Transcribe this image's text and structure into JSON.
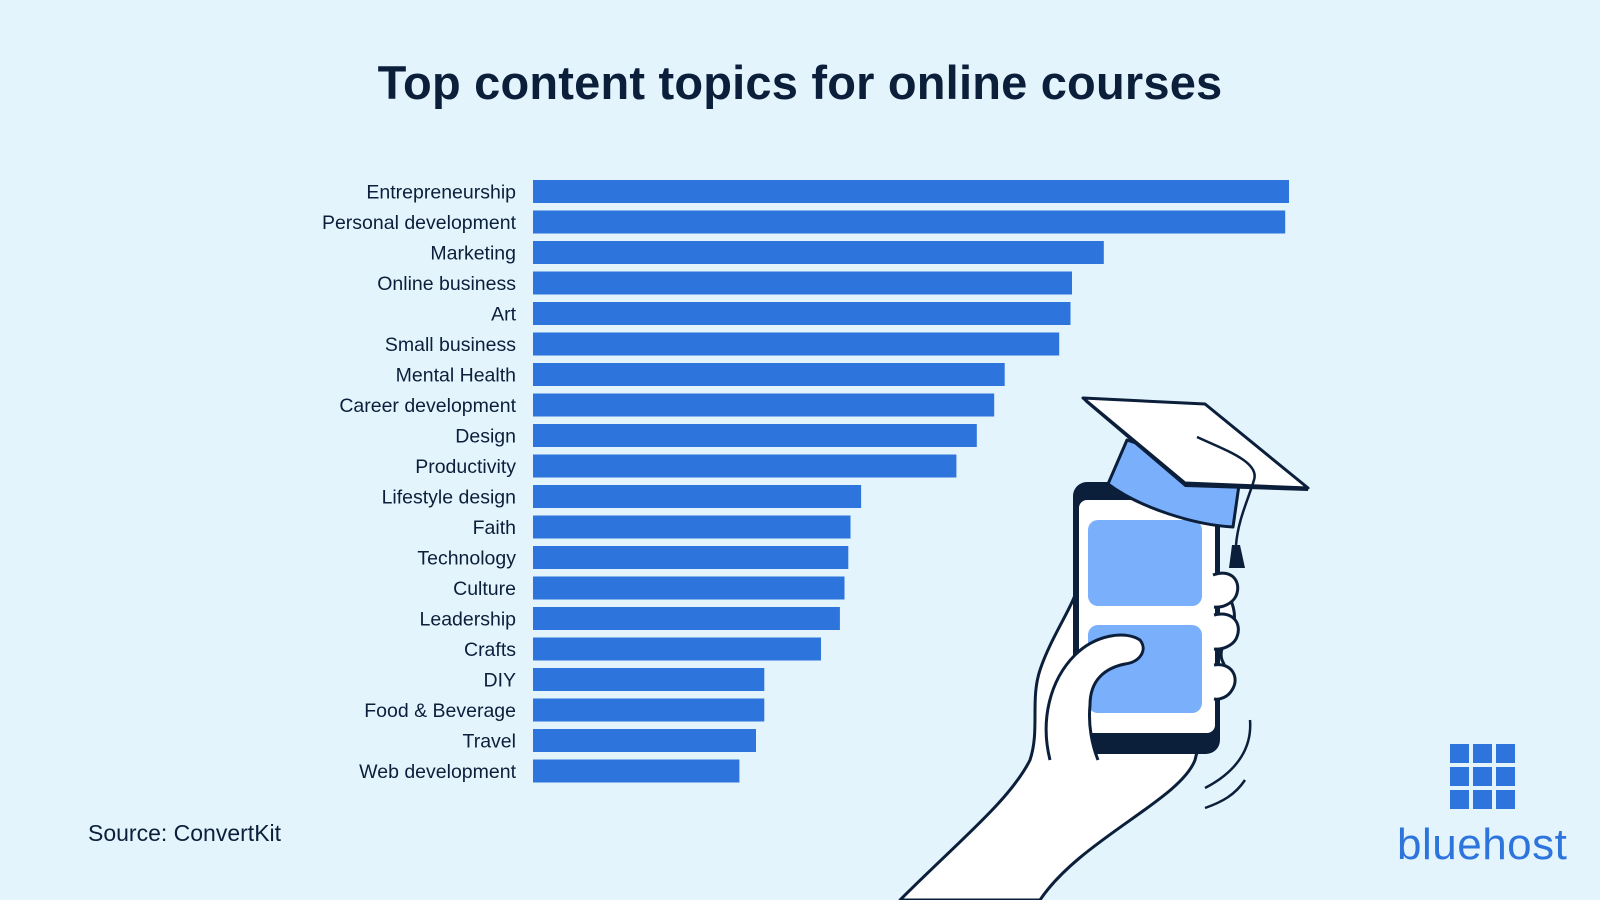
{
  "chart_data": {
    "type": "bar",
    "orientation": "horizontal",
    "title": "Top content topics for online courses",
    "categories": [
      "Entrepreneurship",
      "Personal development",
      "Marketing",
      "Online business",
      "Art",
      "Small business",
      "Mental Health",
      "Career development",
      "Design",
      "Productivity",
      "Lifestyle design",
      "Faith",
      "Technology",
      "Culture",
      "Leadership",
      "Crafts",
      "DIY",
      "Food & Beverage",
      "Travel",
      "Web development"
    ],
    "values": [
      100,
      99.5,
      75.5,
      71.3,
      71.1,
      69.6,
      62.4,
      61.0,
      58.7,
      56.0,
      43.4,
      42.0,
      41.7,
      41.2,
      40.6,
      38.1,
      30.6,
      30.6,
      29.5,
      27.3
    ],
    "xlim": [
      0,
      100
    ],
    "grid": false,
    "legend": "none",
    "bar_color": "#2d74dd"
  },
  "source": "Source: ConvertKit",
  "brand": {
    "name": "bluehost",
    "color": "#2d74dd",
    "icon": "grid-logo-icon"
  },
  "illustration": {
    "icon": "hand-holding-phone-with-graduation-cap-icon"
  }
}
